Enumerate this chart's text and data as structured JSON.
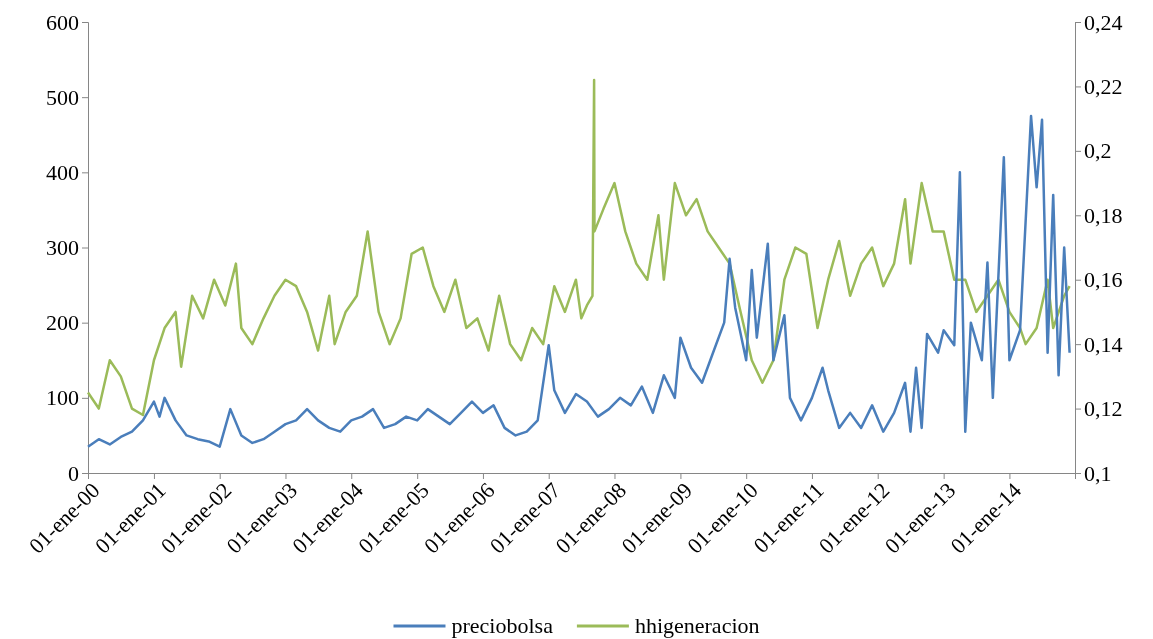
{
  "chart_data": {
    "type": "line",
    "legend": "bottom",
    "xlim": [
      "2000-01-01",
      "2014-12-31"
    ],
    "xticks": [
      {
        "value": "2000-01-01",
        "label": "01-ene-00"
      },
      {
        "value": "2001-01-01",
        "label": "01-ene-01"
      },
      {
        "value": "2002-01-01",
        "label": "01-ene-02"
      },
      {
        "value": "2003-01-01",
        "label": "01-ene-03"
      },
      {
        "value": "2004-01-01",
        "label": "01-ene-04"
      },
      {
        "value": "2005-01-01",
        "label": "01-ene-05"
      },
      {
        "value": "2006-01-01",
        "label": "01-ene-06"
      },
      {
        "value": "2007-01-01",
        "label": "01-ene-07"
      },
      {
        "value": "2008-01-01",
        "label": "01-ene-08"
      },
      {
        "value": "2009-01-01",
        "label": "01-ene-09"
      },
      {
        "value": "2010-01-01",
        "label": "01-ene-10"
      },
      {
        "value": "2011-01-01",
        "label": "01-ene-11"
      },
      {
        "value": "2012-01-01",
        "label": "01-ene-12"
      },
      {
        "value": "2013-01-01",
        "label": "01-ene-13"
      },
      {
        "value": "2014-01-01",
        "label": "01-ene-14"
      }
    ],
    "ylim": [
      0,
      600
    ],
    "yticks": [
      0,
      100,
      200,
      300,
      400,
      500,
      600
    ],
    "y2lim": [
      0.1,
      0.24
    ],
    "y2ticks": [
      {
        "value": 0.1,
        "label": "0,1"
      },
      {
        "value": 0.12,
        "label": "0,12"
      },
      {
        "value": 0.14,
        "label": "0,14"
      },
      {
        "value": 0.16,
        "label": "0,16"
      },
      {
        "value": 0.18,
        "label": "0,18"
      },
      {
        "value": 0.2,
        "label": "0,2"
      },
      {
        "value": 0.22,
        "label": "0,22"
      },
      {
        "value": 0.24,
        "label": "0,24"
      }
    ],
    "series": [
      {
        "name": "preciobolsa",
        "color": "#4a7ebb",
        "x": [
          "2000-01",
          "2000-03",
          "2000-05",
          "2000-07",
          "2000-09",
          "2000-11",
          "2001-01",
          "2001-02",
          "2001-03",
          "2001-05",
          "2001-07",
          "2001-09",
          "2001-11",
          "2002-01",
          "2002-03",
          "2002-05",
          "2002-07",
          "2002-09",
          "2002-11",
          "2003-01",
          "2003-03",
          "2003-05",
          "2003-07",
          "2003-09",
          "2003-11",
          "2004-01",
          "2004-03",
          "2004-05",
          "2004-07",
          "2004-09",
          "2004-11",
          "2005-01",
          "2005-03",
          "2005-05",
          "2005-07",
          "2005-09",
          "2005-11",
          "2006-01",
          "2006-03",
          "2006-05",
          "2006-07",
          "2006-09",
          "2006-11",
          "2007-01",
          "2007-02",
          "2007-04",
          "2007-06",
          "2007-08",
          "2007-10",
          "2007-12",
          "2008-02",
          "2008-04",
          "2008-06",
          "2008-08",
          "2008-10",
          "2008-12",
          "2009-01",
          "2009-03",
          "2009-05",
          "2009-07",
          "2009-09",
          "2009-10",
          "2009-11",
          "2010-01",
          "2010-02",
          "2010-03",
          "2010-05",
          "2010-06",
          "2010-08",
          "2010-09",
          "2010-11",
          "2011-01",
          "2011-03",
          "2011-04",
          "2011-06",
          "2011-08",
          "2011-10",
          "2011-12",
          "2012-02",
          "2012-04",
          "2012-06",
          "2012-07",
          "2012-08",
          "2012-09",
          "2012-10",
          "2012-12",
          "2013-01",
          "2013-03",
          "2013-04",
          "2013-05",
          "2013-06",
          "2013-08",
          "2013-09",
          "2013-10",
          "2013-12",
          "2014-01",
          "2014-03",
          "2014-05",
          "2014-06",
          "2014-07",
          "2014-08",
          "2014-09",
          "2014-10",
          "2014-11",
          "2014-12"
        ],
        "values": [
          35,
          45,
          38,
          48,
          55,
          70,
          95,
          75,
          100,
          70,
          50,
          45,
          42,
          35,
          85,
          50,
          40,
          45,
          55,
          65,
          70,
          85,
          70,
          60,
          55,
          70,
          75,
          85,
          60,
          65,
          75,
          70,
          85,
          75,
          65,
          80,
          95,
          80,
          90,
          60,
          50,
          55,
          70,
          170,
          110,
          80,
          105,
          95,
          75,
          85,
          100,
          90,
          115,
          80,
          130,
          100,
          180,
          140,
          120,
          160,
          200,
          285,
          220,
          150,
          270,
          180,
          305,
          150,
          210,
          100,
          70,
          100,
          140,
          110,
          60,
          80,
          60,
          90,
          55,
          80,
          120,
          55,
          140,
          60,
          185,
          160,
          190,
          170,
          400,
          55,
          200,
          150,
          280,
          100,
          420,
          150,
          190,
          475,
          380,
          470,
          160,
          370,
          130,
          300,
          160
        ]
      },
      {
        "name": "hhigeneracion",
        "color": "#9bbb59",
        "axis": "y2",
        "x": [
          "2000-01",
          "2000-03",
          "2000-05",
          "2000-07",
          "2000-09",
          "2000-11",
          "2001-01",
          "2001-03",
          "2001-05",
          "2001-06",
          "2001-08",
          "2001-10",
          "2001-12",
          "2002-02",
          "2002-04",
          "2002-05",
          "2002-07",
          "2002-09",
          "2002-11",
          "2003-01",
          "2003-03",
          "2003-05",
          "2003-07",
          "2003-09",
          "2003-10",
          "2003-12",
          "2004-02",
          "2004-04",
          "2004-06",
          "2004-08",
          "2004-10",
          "2004-12",
          "2005-02",
          "2005-04",
          "2005-06",
          "2005-08",
          "2005-10",
          "2005-12",
          "2006-02",
          "2006-04",
          "2006-06",
          "2006-08",
          "2006-10",
          "2006-12",
          "2007-02",
          "2007-04",
          "2007-06",
          "2007-07",
          "2007-08",
          "2007-09",
          "2007-09-10",
          "2007-09-12",
          "2007-11",
          "2008-01",
          "2008-03",
          "2008-05",
          "2008-07",
          "2008-09",
          "2008-10",
          "2008-12",
          "2009-02",
          "2009-04",
          "2009-06",
          "2009-08",
          "2009-10",
          "2009-12",
          "2010-02",
          "2010-04",
          "2010-06",
          "2010-08",
          "2010-10",
          "2010-12",
          "2011-02",
          "2011-04",
          "2011-06",
          "2011-08",
          "2011-10",
          "2011-12",
          "2012-02",
          "2012-04",
          "2012-06",
          "2012-07",
          "2012-09",
          "2012-11",
          "2013-01",
          "2013-03",
          "2013-05",
          "2013-07",
          "2013-09",
          "2013-11",
          "2014-01",
          "2014-03",
          "2014-04",
          "2014-06",
          "2014-08",
          "2014-09",
          "2014-11",
          "2014-12"
        ],
        "values": [
          0.125,
          0.12,
          0.135,
          0.13,
          0.12,
          0.118,
          0.135,
          0.145,
          0.15,
          0.133,
          0.155,
          0.148,
          0.16,
          0.152,
          0.165,
          0.145,
          0.14,
          0.148,
          0.155,
          0.16,
          0.158,
          0.15,
          0.138,
          0.155,
          0.14,
          0.15,
          0.155,
          0.175,
          0.15,
          0.14,
          0.148,
          0.168,
          0.17,
          0.158,
          0.15,
          0.16,
          0.145,
          0.148,
          0.138,
          0.155,
          0.14,
          0.135,
          0.145,
          0.14,
          0.158,
          0.15,
          0.16,
          0.148,
          0.152,
          0.155,
          0.222,
          0.175,
          0.182,
          0.19,
          0.175,
          0.165,
          0.16,
          0.18,
          0.16,
          0.19,
          0.18,
          0.185,
          0.175,
          0.17,
          0.165,
          0.15,
          0.135,
          0.128,
          0.135,
          0.16,
          0.17,
          0.168,
          0.145,
          0.16,
          0.172,
          0.155,
          0.165,
          0.17,
          0.158,
          0.165,
          0.185,
          0.165,
          0.19,
          0.175,
          0.175,
          0.16,
          0.16,
          0.15,
          0.155,
          0.16,
          0.15,
          0.145,
          0.14,
          0.145,
          0.16,
          0.145,
          0.155,
          0.158
        ]
      }
    ]
  }
}
